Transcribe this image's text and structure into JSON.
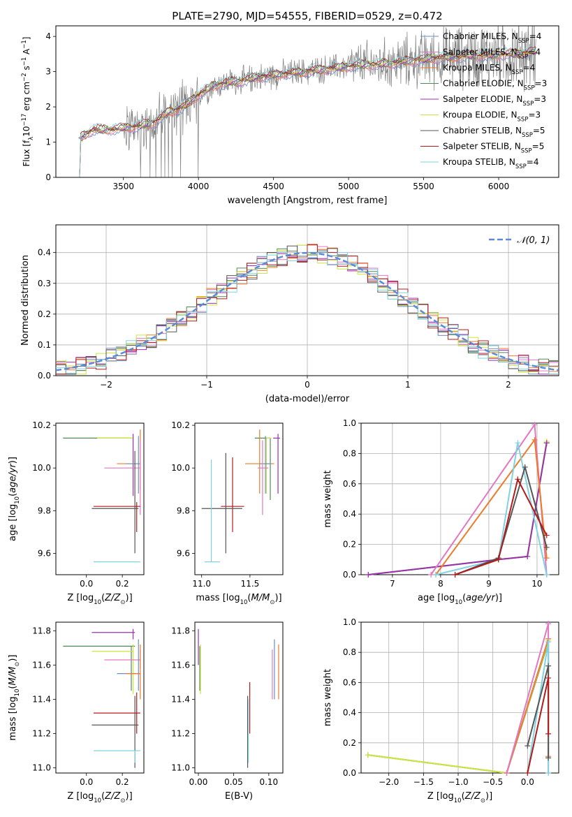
{
  "page_title": "PLATE=2790, MJD=54555, FIBERID=0529, z=0.472",
  "colors": {
    "Chabrier MILES": "#6c8ebf",
    "Salpeter MILES": "#e377c2",
    "Kroupa MILES": "#ec7b2b",
    "Chabrier ELODIE": "#4f8a55",
    "Salpeter ELODIE": "#9b2fb3",
    "Kroupa ELODIE": "#cde63c",
    "Chabrier STELIB": "#555555",
    "Salpeter STELIB": "#b31b1b",
    "Kroupa STELIB": "#7fd3e0",
    "data": "#808080",
    "gauss": "#5b8bd6"
  },
  "chart_data": [
    {
      "id": "spectrum",
      "type": "line",
      "title": "PLATE=2790, MJD=54555, FIBERID=0529, z=0.472",
      "xlabel": "wavelength [Angstrom, rest frame]",
      "ylabel": "Flux [f",
      "ylabel_sub": "λ",
      "ylabel_rest": "10",
      "ylabel_exp1": "−17",
      "ylabel_mid": " erg cm",
      "ylabel_exp2": "−2",
      "ylabel_mid2": " s",
      "ylabel_exp3": "−1",
      "ylabel_mid3": " A",
      "ylabel_exp4": "−1",
      "ylabel_end": "]",
      "xlim": [
        3050,
        6400
      ],
      "ylim": [
        0,
        4.3
      ],
      "xticks": [
        "3500",
        "4000",
        "4500",
        "5000",
        "5500",
        "6000"
      ],
      "xtick_values": [
        3500,
        4000,
        4500,
        5000,
        5500,
        6000
      ],
      "yticks": [
        "0",
        "1",
        "2",
        "3",
        "4"
      ],
      "ytick_values": [
        0,
        1,
        2,
        3,
        4
      ],
      "continuum_x": [
        3200,
        3300,
        3400,
        3500,
        3600,
        3700,
        3800,
        3900,
        4000,
        4100,
        4200,
        4300,
        4400,
        4500,
        4600,
        4700,
        4800,
        4900,
        5000,
        5100,
        5200,
        5300,
        5400,
        5500,
        5600,
        5700,
        5800,
        5900,
        6000,
        6100,
        6200
      ],
      "continuum_y": [
        1.1,
        1.35,
        1.35,
        1.4,
        1.45,
        1.55,
        1.85,
        2.0,
        2.35,
        2.6,
        2.7,
        2.75,
        2.85,
        2.9,
        2.95,
        3.0,
        3.05,
        3.1,
        3.15,
        3.2,
        3.2,
        3.25,
        3.3,
        3.35,
        3.4,
        3.4,
        3.45,
        3.45,
        3.5,
        3.5,
        3.55
      ],
      "legend_position": "top-right",
      "series": [
        {
          "name": "Chabrier MILES",
          "label": "Chabrier MILES, N",
          "sub": "SSP",
          "n": "=4",
          "color_key": "Chabrier MILES"
        },
        {
          "name": "Salpeter MILES",
          "label": "Salpeter MILES, N",
          "sub": "SSP",
          "n": "=4",
          "color_key": "Salpeter MILES"
        },
        {
          "name": "Kroupa MILES",
          "label": "Kroupa MILES, N",
          "sub": "SSP",
          "n": "=4",
          "color_key": "Kroupa MILES"
        },
        {
          "name": "Chabrier ELODIE",
          "label": "Chabrier ELODIE, N",
          "sub": "SSP",
          "n": "=3",
          "color_key": "Chabrier ELODIE"
        },
        {
          "name": "Salpeter ELODIE",
          "label": "Salpeter ELODIE, N",
          "sub": "SSP",
          "n": "=3",
          "color_key": "Salpeter ELODIE"
        },
        {
          "name": "Kroupa ELODIE",
          "label": "Kroupa ELODIE, N",
          "sub": "SSP",
          "n": "=3",
          "color_key": "Kroupa ELODIE"
        },
        {
          "name": "Chabrier STELIB",
          "label": "Chabrier STELIB, N",
          "sub": "SSP",
          "n": "=5",
          "color_key": "Chabrier STELIB"
        },
        {
          "name": "Salpeter STELIB",
          "label": "Salpeter STELIB, N",
          "sub": "SSP",
          "n": "=5",
          "color_key": "Salpeter STELIB"
        },
        {
          "name": "Kroupa STELIB",
          "label": "Kroupa STELIB, N",
          "sub": "SSP",
          "n": "=4",
          "color_key": "Kroupa STELIB"
        }
      ]
    },
    {
      "id": "residuals",
      "type": "line",
      "xlabel": "(data-model)/error",
      "ylabel": "Normed distribution",
      "xlim": [
        -2.5,
        2.5
      ],
      "ylim": [
        0,
        0.49
      ],
      "xticks": [
        "−2",
        "−1",
        "0",
        "1",
        "2"
      ],
      "xtick_values": [
        -2,
        -1,
        0,
        1,
        2
      ],
      "yticks": [
        "0.0",
        "0.1",
        "0.2",
        "0.3",
        "0.4"
      ],
      "ytick_values": [
        0,
        0.1,
        0.2,
        0.3,
        0.4
      ],
      "grid": true,
      "legend_label": "𝒩(0, 1)",
      "legend_position": "top-right",
      "bin_width": 0.1
    },
    {
      "id": "age-vs-Z",
      "type": "scatter",
      "xlabel": "Z [log",
      "xlabel_sub": "10",
      "xlabel_rest": "(Z/Z",
      "xlabel_sub2": "⊙",
      "xlabel_end": ")]",
      "ylabel": "age  [log",
      "ylabel_sub": "10",
      "ylabel_rest": "(age/yr)]",
      "xlim": [
        -0.17,
        0.32
      ],
      "ylim": [
        9.5,
        10.21
      ],
      "xticks": [
        "0.0",
        "0.2"
      ],
      "xtick_values": [
        0,
        0.2
      ],
      "yticks": [
        "9.6",
        "9.8",
        "10.0",
        "10.2"
      ],
      "ytick_values": [
        9.6,
        9.8,
        10.0,
        10.2
      ],
      "points": [
        {
          "c": "Chabrier ELODIE",
          "x": 0.25,
          "y": 10.14,
          "xlo": -0.13,
          "xhi": 0.25,
          "ylo": 10.14,
          "yhi": 10.14
        },
        {
          "c": "Kroupa ELODIE",
          "x": 0.26,
          "y": 10.14,
          "xlo": 0.06,
          "xhi": 0.26,
          "ylo": 9.9,
          "yhi": 10.14
        },
        {
          "c": "Salpeter ELODIE",
          "x": 0.26,
          "y": 10.14,
          "xlo": 0.26,
          "xhi": 0.26,
          "ylo": 9.87,
          "yhi": 10.16
        },
        {
          "c": "Kroupa MILES",
          "x": 0.3,
          "y": 10.02,
          "xlo": 0.17,
          "xhi": 0.3,
          "ylo": 9.9,
          "yhi": 10.18
        },
        {
          "c": "Chabrier MILES",
          "x": 0.29,
          "y": 10.02,
          "xlo": 0.22,
          "xhi": 0.3,
          "ylo": 9.88,
          "yhi": 10.15
        },
        {
          "c": "Salpeter MILES",
          "x": 0.3,
          "y": 10.0,
          "xlo": 0.1,
          "xhi": 0.3,
          "ylo": 9.78,
          "yhi": 10.13
        },
        {
          "c": "Salpeter STELIB",
          "x": 0.28,
          "y": 9.82,
          "xlo": 0.04,
          "xhi": 0.3,
          "ylo": 9.7,
          "yhi": 9.84
        },
        {
          "c": "Chabrier STELIB",
          "x": 0.27,
          "y": 9.81,
          "xlo": 0.03,
          "xhi": 0.29,
          "ylo": 9.6,
          "yhi": 10.08
        },
        {
          "c": "Kroupa STELIB",
          "x": 0.27,
          "y": 9.56,
          "xlo": 0.04,
          "xhi": 0.3,
          "ylo": 9.56,
          "yhi": 9.56
        }
      ]
    },
    {
      "id": "age-vs-mass",
      "type": "scatter",
      "xlabel": "mass [log",
      "xlabel_sub": "10",
      "xlabel_rest": "(M/M",
      "xlabel_sub2": "⊙",
      "xlabel_end": ")]",
      "xlim": [
        10.93,
        11.84
      ],
      "ylim": [
        9.5,
        10.21
      ],
      "xticks": [
        "11.0",
        "11.5"
      ],
      "xtick_values": [
        11.0,
        11.5
      ],
      "yticks": [
        "9.6",
        "9.8",
        "10.0",
        "10.2"
      ],
      "ytick_values": [
        9.6,
        9.8,
        10.0,
        10.2
      ],
      "points": [
        {
          "c": "Chabrier ELODIE",
          "x": 11.71,
          "y": 10.14,
          "xlo": 11.55,
          "xhi": 11.71,
          "ylo": 9.85,
          "yhi": 10.14
        },
        {
          "c": "Kroupa ELODIE",
          "x": 11.67,
          "y": 10.14,
          "xlo": 11.67,
          "xhi": 11.72,
          "ylo": 9.88,
          "yhi": 10.14
        },
        {
          "c": "Salpeter ELODIE",
          "x": 11.79,
          "y": 10.14,
          "xlo": 11.74,
          "xhi": 11.81,
          "ylo": 9.88,
          "yhi": 10.16
        },
        {
          "c": "Kroupa MILES",
          "x": 11.6,
          "y": 10.02,
          "xlo": 11.45,
          "xhi": 11.75,
          "ylo": 9.88,
          "yhi": 10.18
        },
        {
          "c": "Chabrier MILES",
          "x": 11.66,
          "y": 10.02,
          "xlo": 11.6,
          "xhi": 11.72,
          "ylo": 9.88,
          "yhi": 10.15
        },
        {
          "c": "Salpeter MILES",
          "x": 11.63,
          "y": 10.0,
          "xlo": 11.58,
          "xhi": 11.69,
          "ylo": 9.78,
          "yhi": 10.13
        },
        {
          "c": "Salpeter STELIB",
          "x": 11.32,
          "y": 9.82,
          "xlo": 11.2,
          "xhi": 11.44,
          "ylo": 9.7,
          "yhi": 10.05
        },
        {
          "c": "Chabrier STELIB",
          "x": 11.25,
          "y": 9.81,
          "xlo": 11.0,
          "xhi": 11.42,
          "ylo": 9.6,
          "yhi": 10.07
        },
        {
          "c": "Kroupa STELIB",
          "x": 11.1,
          "y": 9.56,
          "xlo": 11.03,
          "xhi": 11.19,
          "ylo": 9.56,
          "yhi": 10.04
        }
      ]
    },
    {
      "id": "massweight-vs-age",
      "type": "line",
      "xlabel": "age  [log",
      "xlabel_sub": "10",
      "xlabel_rest": "(age/yr)]",
      "ylabel": "mass weight",
      "xlim": [
        6.35,
        10.45
      ],
      "ylim": [
        0,
        1.0
      ],
      "xticks": [
        "7",
        "8",
        "9",
        "10"
      ],
      "xtick_values": [
        7,
        8,
        9,
        10
      ],
      "yticks": [
        "0.0",
        "0.2",
        "0.4",
        "0.6",
        "0.8",
        "1.0"
      ],
      "ytick_values": [
        0,
        0.2,
        0.4,
        0.6,
        0.8,
        1.0
      ],
      "grid": true,
      "lines": [
        {
          "c": "Chabrier ELODIE",
          "x": [
            6.5,
            9.2,
            9.8,
            10.2
          ],
          "y": [
            0.0,
            0.1,
            0.12,
            0.87
          ]
        },
        {
          "c": "Kroupa ELODIE",
          "x": [
            6.5,
            9.2,
            9.8,
            10.2
          ],
          "y": [
            0.0,
            0.1,
            0.12,
            0.88
          ]
        },
        {
          "c": "Salpeter ELODIE",
          "x": [
            6.5,
            9.2,
            9.8,
            10.2
          ],
          "y": [
            0.0,
            0.1,
            0.12,
            0.87
          ]
        },
        {
          "c": "Salpeter MILES",
          "x": [
            7.8,
            9.95,
            10.2
          ],
          "y": [
            0.0,
            0.99,
            0.0
          ]
        },
        {
          "c": "Kroupa MILES",
          "x": [
            7.9,
            9.95,
            10.2
          ],
          "y": [
            0.0,
            0.89,
            0.11
          ]
        },
        {
          "c": "Kroupa STELIB",
          "x": [
            7.9,
            9.2,
            9.6,
            10.2
          ],
          "y": [
            0.0,
            0.1,
            0.87,
            0.0
          ]
        },
        {
          "c": "Chabrier STELIB",
          "x": [
            8.3,
            9.2,
            9.75,
            10.2
          ],
          "y": [
            0.0,
            0.11,
            0.71,
            0.18
          ]
        },
        {
          "c": "Salpeter STELIB",
          "x": [
            8.3,
            9.2,
            9.6,
            10.2
          ],
          "y": [
            0.0,
            0.1,
            0.63,
            0.26
          ]
        }
      ]
    },
    {
      "id": "mass-vs-Z",
      "type": "scatter",
      "xlabel": "Z [log",
      "xlabel_sub": "10",
      "xlabel_rest": "(Z/Z",
      "xlabel_sub2": "⊙",
      "xlabel_end": ")]",
      "ylabel": "mass [log",
      "ylabel_sub": "10",
      "ylabel_rest": "(M/M",
      "ylabel_sub2": "⊙",
      "ylabel_end": ")]",
      "xlim": [
        -0.17,
        0.32
      ],
      "ylim": [
        10.97,
        11.85
      ],
      "xticks": [
        "0.0",
        "0.2"
      ],
      "xtick_values": [
        0,
        0.2
      ],
      "yticks": [
        "11.0",
        "11.2",
        "11.4",
        "11.6",
        "11.8"
      ],
      "ytick_values": [
        11.0,
        11.2,
        11.4,
        11.6,
        11.8
      ],
      "points": [
        {
          "c": "Salpeter ELODIE",
          "x": 0.26,
          "y": 11.79,
          "xlo": 0.03,
          "xhi": 0.27,
          "ylo": 11.75,
          "yhi": 11.81
        },
        {
          "c": "Chabrier ELODIE",
          "x": 0.25,
          "y": 11.71,
          "xlo": -0.13,
          "xhi": 0.27,
          "ylo": 11.45,
          "yhi": 11.71
        },
        {
          "c": "Kroupa ELODIE",
          "x": 0.26,
          "y": 11.68,
          "xlo": 0.03,
          "xhi": 0.26,
          "ylo": 11.43,
          "yhi": 11.72
        },
        {
          "c": "Salpeter MILES",
          "x": 0.3,
          "y": 11.63,
          "xlo": 0.1,
          "xhi": 0.3,
          "ylo": 11.58,
          "yhi": 11.69
        },
        {
          "c": "Chabrier MILES",
          "x": 0.29,
          "y": 11.55,
          "xlo": 0.17,
          "xhi": 0.3,
          "ylo": 11.45,
          "yhi": 11.75
        },
        {
          "c": "Kroupa MILES",
          "x": 0.3,
          "y": 11.55,
          "xlo": 0.22,
          "xhi": 0.3,
          "ylo": 11.4,
          "yhi": 11.72
        },
        {
          "c": "Salpeter STELIB",
          "x": 0.28,
          "y": 11.32,
          "xlo": 0.04,
          "xhi": 0.3,
          "ylo": 11.2,
          "yhi": 11.44
        },
        {
          "c": "Chabrier STELIB",
          "x": 0.27,
          "y": 11.25,
          "xlo": 0.03,
          "xhi": 0.29,
          "ylo": 11.0,
          "yhi": 11.42
        },
        {
          "c": "Kroupa STELIB",
          "x": 0.27,
          "y": 11.1,
          "xlo": 0.04,
          "xhi": 0.3,
          "ylo": 11.03,
          "yhi": 11.1
        }
      ]
    },
    {
      "id": "mass-vs-ebv",
      "type": "scatter",
      "xlabel": "E(B-V)",
      "xlim": [
        -0.005,
        0.12
      ],
      "ylim": [
        10.97,
        11.85
      ],
      "xticks": [
        "0.00",
        "0.05",
        "0.10"
      ],
      "xtick_values": [
        0,
        0.05,
        0.1
      ],
      "yticks": [
        "11.0",
        "11.2",
        "11.4",
        "11.6",
        "11.8"
      ],
      "ytick_values": [
        11.0,
        11.2,
        11.4,
        11.6,
        11.8
      ],
      "points": [
        {
          "c": "Salpeter ELODIE",
          "x": 0.0,
          "ylo": 11.6,
          "yhi": 11.81
        },
        {
          "c": "Chabrier ELODIE",
          "x": 0.002,
          "ylo": 11.45,
          "yhi": 11.71
        },
        {
          "c": "Kroupa ELODIE",
          "x": 0.003,
          "ylo": 11.43,
          "yhi": 11.72
        },
        {
          "c": "Chabrier STELIB",
          "x": 0.07,
          "ylo": 11.0,
          "yhi": 11.42
        },
        {
          "c": "Kroupa STELIB",
          "x": 0.071,
          "ylo": 11.03,
          "yhi": 11.4
        },
        {
          "c": "Salpeter STELIB",
          "x": 0.073,
          "ylo": 11.2,
          "yhi": 11.5
        },
        {
          "c": "Salpeter MILES",
          "x": 0.105,
          "ylo": 11.4,
          "yhi": 11.69
        },
        {
          "c": "Chabrier MILES",
          "x": 0.108,
          "ylo": 11.4,
          "yhi": 11.75
        },
        {
          "c": "Kroupa MILES",
          "x": 0.114,
          "ylo": 11.4,
          "yhi": 11.72
        }
      ]
    },
    {
      "id": "massweight-vs-Z",
      "type": "line",
      "xlabel": "Z [log",
      "xlabel_sub": "10",
      "xlabel_rest": "(Z/Z",
      "xlabel_sub2": "⊙",
      "xlabel_end": ")]",
      "ylabel": "mass weight",
      "xlim": [
        -2.4,
        0.45
      ],
      "ylim": [
        0,
        1.0
      ],
      "xticks": [
        "−2.0",
        "−1.5",
        "−1.0",
        "−0.5",
        "0.0"
      ],
      "xtick_values": [
        -2.0,
        -1.5,
        -1.0,
        -0.5,
        0.0
      ],
      "yticks": [
        "0.0",
        "0.2",
        "0.4",
        "0.6",
        "0.8",
        "1.0"
      ],
      "ytick_values": [
        0,
        0.2,
        0.4,
        0.6,
        0.8,
        1.0
      ],
      "grid": true,
      "lines": [
        {
          "c": "Chabrier ELODIE",
          "x": [
            -2.3,
            -0.3,
            0.3
          ],
          "y": [
            0.12,
            0.0,
            0.87
          ]
        },
        {
          "c": "Kroupa ELODIE",
          "x": [
            -2.3,
            -0.3,
            0.3
          ],
          "y": [
            0.12,
            0.0,
            0.88
          ]
        },
        {
          "c": "Kroupa MILES",
          "x": [
            -0.3,
            0.3,
            0.3
          ],
          "y": [
            0.0,
            0.89,
            0.11
          ]
        },
        {
          "c": "Salpeter MILES",
          "x": [
            -0.3,
            0.3,
            0.3
          ],
          "y": [
            0.0,
            0.99,
            0.0
          ]
        },
        {
          "c": "Kroupa STELIB",
          "x": [
            0.0,
            0.3,
            0.3
          ],
          "y": [
            0.0,
            0.87,
            0.0
          ]
        },
        {
          "c": "Chabrier STELIB",
          "x": [
            0.0,
            0.3,
            0.3
          ],
          "y": [
            0.18,
            0.71,
            0.1
          ]
        },
        {
          "c": "Salpeter STELIB",
          "x": [
            0.0,
            0.3,
            0.3
          ],
          "y": [
            0.0,
            0.63,
            0.26
          ]
        }
      ]
    }
  ]
}
